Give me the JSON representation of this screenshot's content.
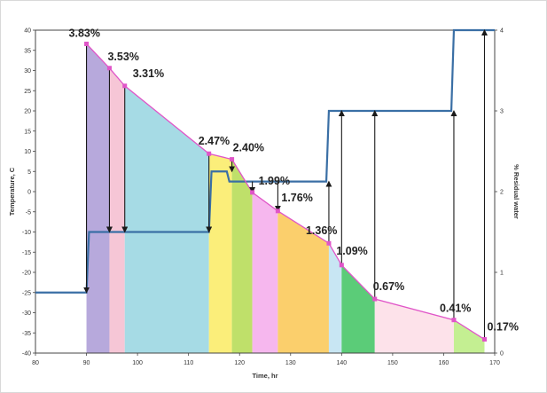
{
  "chart_data": {
    "type": "area",
    "title": "",
    "xlabel": "Time, hr",
    "ylabel_left": "Temperature, C",
    "ylabel_right": "% Residual water",
    "xlim": [
      80,
      170
    ],
    "ylim_left": [
      -40,
      40
    ],
    "ylim_right": [
      0,
      4
    ],
    "x_ticks": [
      80,
      90,
      100,
      110,
      120,
      130,
      140,
      150,
      160,
      170
    ],
    "y_ticks_left": [
      40,
      35,
      30,
      25,
      20,
      15,
      10,
      5,
      0,
      -5,
      -10,
      -15,
      -20,
      -25,
      -30,
      -35,
      -40
    ],
    "y_ticks_right": [
      4,
      3,
      2,
      1,
      0
    ],
    "grid": false,
    "legend": "none",
    "residual_water_series": {
      "name": "% Residual water",
      "color": "#e055c8",
      "points": [
        {
          "x": 90,
          "y": 3.83,
          "label": "3.83%"
        },
        {
          "x": 94.5,
          "y": 3.53,
          "label": "3.53%"
        },
        {
          "x": 97.5,
          "y": 3.31,
          "label": "3.31%"
        },
        {
          "x": 114,
          "y": 2.47,
          "label": "2.47%"
        },
        {
          "x": 118.5,
          "y": 2.4,
          "label": "2.40%"
        },
        {
          "x": 122.5,
          "y": 1.99,
          "label": "1.99%"
        },
        {
          "x": 127.5,
          "y": 1.76,
          "label": "1.76%"
        },
        {
          "x": 137.5,
          "y": 1.36,
          "label": "1.36%"
        },
        {
          "x": 140,
          "y": 1.09,
          "label": "1.09%"
        },
        {
          "x": 146.5,
          "y": 0.67,
          "label": "0.67%"
        },
        {
          "x": 162,
          "y": 0.41,
          "label": "0.41%"
        },
        {
          "x": 168,
          "y": 0.17,
          "label": "0.17%"
        }
      ]
    },
    "temperature_series": {
      "name": "Temperature",
      "color": "#3a6fa5",
      "points": [
        {
          "x": 80,
          "y": -25
        },
        {
          "x": 90,
          "y": -25
        },
        {
          "x": 90.5,
          "y": -10
        },
        {
          "x": 114,
          "y": -10
        },
        {
          "x": 114.5,
          "y": 5
        },
        {
          "x": 117.5,
          "y": 5
        },
        {
          "x": 118,
          "y": 2.5
        },
        {
          "x": 137,
          "y": 2.5
        },
        {
          "x": 137.5,
          "y": 20
        },
        {
          "x": 161.5,
          "y": 20
        },
        {
          "x": 162,
          "y": 40
        },
        {
          "x": 170,
          "y": 40
        }
      ]
    },
    "segment_colors": [
      "#b7a9dc",
      "#f6c6d6",
      "#a6dbe5",
      "#fbee7a",
      "#bfe06a",
      "#f6b7ee",
      "#fbcf6c",
      "#c8e6f3",
      "#5bcc78",
      "#fde2ea",
      "#c4ef92"
    ],
    "arrows": [
      {
        "x": 90,
        "from": 3.83,
        "to": -25
      },
      {
        "x": 94.5,
        "from": 3.53,
        "to": -10
      },
      {
        "x": 97.5,
        "from": 3.31,
        "to": -10
      },
      {
        "x": 114,
        "from": 2.47,
        "to": -10
      },
      {
        "x": 118.5,
        "from": 2.4,
        "to": 5
      },
      {
        "x": 122.5,
        "from": 2.5,
        "to": 1.99
      },
      {
        "x": 127.5,
        "from": 2.5,
        "to": 1.76
      },
      {
        "x": 137.5,
        "from": 1.36,
        "to": 2.5
      },
      {
        "x": 140,
        "from": 1.09,
        "to": 20
      },
      {
        "x": 146.5,
        "from": 0.67,
        "to": 20
      },
      {
        "x": 162,
        "from": 0.41,
        "to": 20
      },
      {
        "x": 168,
        "from": 0.17,
        "to": 40
      }
    ]
  }
}
